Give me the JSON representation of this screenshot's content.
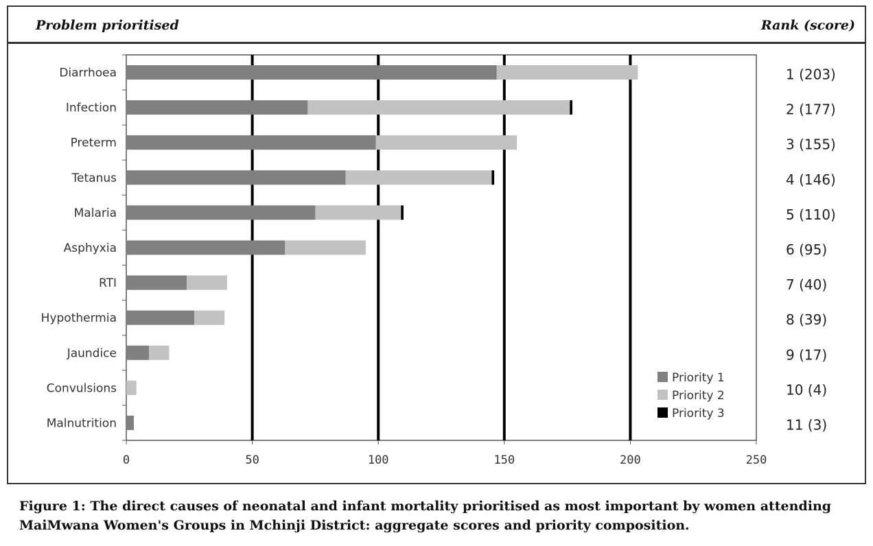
{
  "header": {
    "left": "Problem prioritised",
    "right": "Rank (score)"
  },
  "caption": {
    "line1": "Figure 1: The direct causes of neonatal and infant mortality prioritised as most important by women attending",
    "line2": "MaiMwana Women's Groups in Mchinji District: aggregate scores and priority composition."
  },
  "chart_data": {
    "type": "bar",
    "orientation": "horizontal",
    "stacked": true,
    "categories": [
      "Diarrhoea",
      "Infection",
      "Preterm",
      "Tetanus",
      "Malaria",
      "Asphyxia",
      "RTI",
      "Hypothermia",
      "Jaundice",
      "Convulsions",
      "Malnutrition"
    ],
    "series": [
      {
        "name": "Priority 1",
        "color": "#808080",
        "values": [
          147,
          72,
          99,
          87,
          75,
          63,
          24,
          27,
          9,
          0,
          3
        ]
      },
      {
        "name": "Priority 2",
        "color": "#c2c2c2",
        "values": [
          56,
          104,
          56,
          58,
          34,
          32,
          16,
          12,
          8,
          4,
          0
        ]
      },
      {
        "name": "Priority 3",
        "color": "#000000",
        "values": [
          0,
          1,
          0,
          1,
          1,
          0,
          0,
          0,
          0,
          0,
          0
        ]
      }
    ],
    "rank_labels": [
      "1 (203)",
      "2 (177)",
      "3 (155)",
      "4 (146)",
      "5 (110)",
      "6 (95)",
      "7 (40)",
      "8 (39)",
      "9 (17)",
      "10 (4)",
      "11 (3)"
    ],
    "x_ticks": [
      0,
      50,
      100,
      150,
      200,
      250
    ],
    "xlim": [
      0,
      250
    ],
    "gridlines": [
      50,
      100,
      150,
      200
    ],
    "legend_position": "bottom-right"
  }
}
